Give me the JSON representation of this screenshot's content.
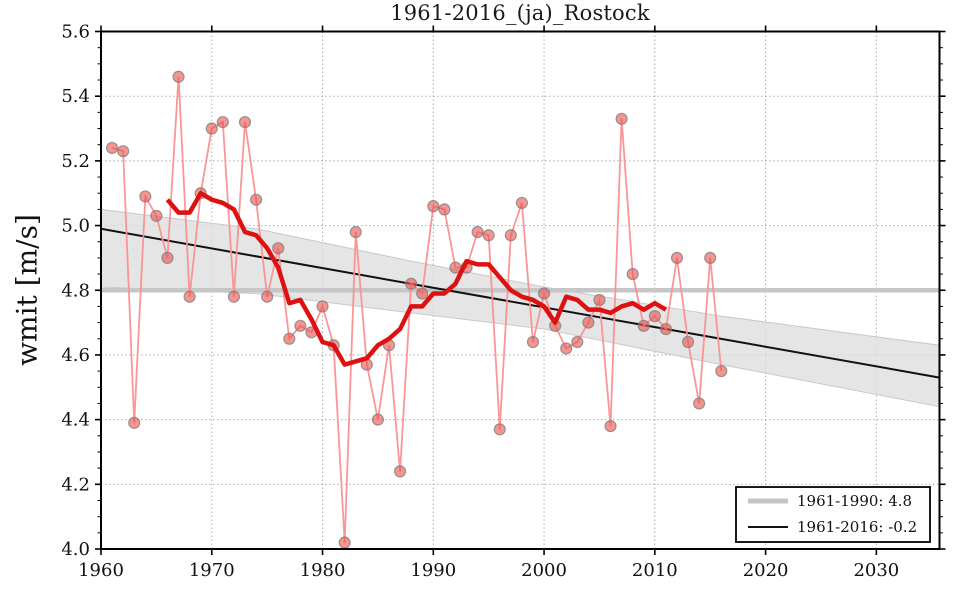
{
  "colors": {
    "smoothed_red": "#dd1111",
    "annual_pink": "#fb9090",
    "marker_fill": "#e85550",
    "marker_edge": "#7d7d7d",
    "band_gray": "#dcdcdc",
    "refline_gray": "#c6c6c6",
    "trend_black": "#111111",
    "grid_gray": "#999999",
    "spine_black": "#000000"
  },
  "legend": {
    "items": [
      {
        "label": "1961-1990: 4.8",
        "series": "reference-mean",
        "color": "#c6c6c6"
      },
      {
        "label": "1961-2016: -0.2",
        "series": "linear-trend",
        "color": "#111111"
      }
    ]
  },
  "chart_data": {
    "type": "line",
    "title": "1961-2016_(ja)_Rostock",
    "xlabel": "",
    "ylabel": "wmit [m/s]",
    "xlim": [
      1960,
      2035.7
    ],
    "ylim": [
      4.0,
      5.6
    ],
    "xticks": [
      1960,
      1970,
      1980,
      1990,
      2000,
      2010,
      2020,
      2030
    ],
    "yticks": [
      4.0,
      4.2,
      4.4,
      4.6,
      4.8,
      5.0,
      5.2,
      5.4,
      5.6
    ],
    "y_minor_step": 0.05,
    "grid": true,
    "legend_position": "lower right",
    "series": [
      {
        "name": "annual-wmit",
        "style": "markers+line",
        "x": [
          1961,
          1962,
          1963,
          1964,
          1965,
          1966,
          1967,
          1968,
          1969,
          1970,
          1971,
          1972,
          1973,
          1974,
          1975,
          1976,
          1977,
          1978,
          1979,
          1980,
          1981,
          1982,
          1983,
          1984,
          1985,
          1986,
          1987,
          1988,
          1989,
          1990,
          1991,
          1992,
          1993,
          1994,
          1995,
          1996,
          1997,
          1998,
          1999,
          2000,
          2001,
          2002,
          2003,
          2004,
          2005,
          2006,
          2007,
          2008,
          2009,
          2010,
          2011,
          2012,
          2013,
          2014,
          2015,
          2016
        ],
        "values": [
          5.24,
          5.23,
          4.39,
          5.09,
          5.03,
          4.9,
          5.46,
          4.78,
          5.1,
          5.3,
          5.32,
          4.78,
          5.32,
          5.08,
          4.78,
          4.93,
          4.65,
          4.69,
          4.67,
          4.75,
          4.63,
          4.02,
          4.98,
          4.57,
          4.4,
          4.63,
          4.24,
          4.82,
          4.79,
          5.06,
          5.05,
          4.87,
          4.87,
          4.98,
          4.97,
          4.37,
          4.97,
          5.07,
          4.64,
          4.79,
          4.69,
          4.62,
          4.64,
          4.7,
          4.77,
          4.38,
          5.33,
          4.85,
          4.69,
          4.72,
          4.68,
          4.9,
          4.64,
          4.45,
          4.9,
          4.55
        ]
      },
      {
        "name": "smoothed-11yr",
        "style": "thick-line",
        "x": [
          1966,
          1967,
          1968,
          1969,
          1970,
          1971,
          1972,
          1973,
          1974,
          1975,
          1976,
          1977,
          1978,
          1979,
          1980,
          1981,
          1982,
          1983,
          1984,
          1985,
          1986,
          1987,
          1988,
          1989,
          1990,
          1991,
          1992,
          1993,
          1994,
          1995,
          1996,
          1997,
          1998,
          1999,
          2000,
          2001,
          2002,
          2003,
          2004,
          2005,
          2006,
          2007,
          2008,
          2009,
          2010,
          2011
        ],
        "values": [
          5.08,
          5.04,
          5.04,
          5.1,
          5.08,
          5.07,
          5.05,
          4.98,
          4.97,
          4.93,
          4.87,
          4.76,
          4.77,
          4.71,
          4.64,
          4.63,
          4.57,
          4.58,
          4.59,
          4.63,
          4.65,
          4.68,
          4.75,
          4.75,
          4.79,
          4.79,
          4.82,
          4.89,
          4.88,
          4.88,
          4.84,
          4.8,
          4.78,
          4.77,
          4.75,
          4.7,
          4.78,
          4.77,
          4.74,
          4.74,
          4.73,
          4.75,
          4.76,
          4.74,
          4.76,
          4.74
        ]
      },
      {
        "name": "reference-mean-1961-1990",
        "style": "horizontal-line",
        "y": 4.8
      },
      {
        "name": "linear-trend-1961-2016",
        "style": "line",
        "x": [
          1960,
          2035.7
        ],
        "values": [
          4.99,
          4.53
        ]
      },
      {
        "name": "trend-confidence-band",
        "style": "band",
        "x": [
          1960,
          1974,
          1988,
          2000,
          2016,
          2035.7
        ],
        "upper": [
          5.05,
          4.99,
          4.89,
          4.81,
          4.72,
          4.63
        ],
        "lower": [
          4.81,
          4.79,
          4.73,
          4.68,
          4.57,
          4.44
        ]
      }
    ]
  }
}
